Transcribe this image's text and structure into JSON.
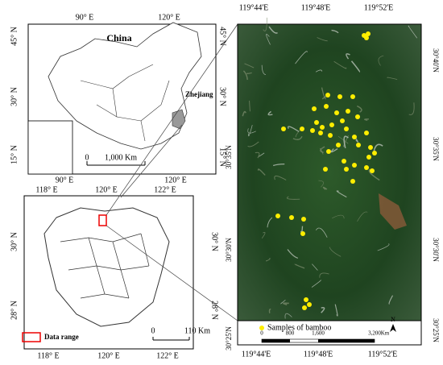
{
  "china_map": {
    "title": "China",
    "province": "Zhejiang",
    "top_labels": [
      "90° E",
      "120° E"
    ],
    "bottom_labels": [
      "90° E",
      "120° E"
    ],
    "left_labels": [
      "45° N",
      "30° N",
      "15° N"
    ],
    "right_labels": [
      "45° N",
      "30° N",
      "15° N"
    ],
    "scale": [
      "0",
      "1,000 Km"
    ]
  },
  "zhejiang_map": {
    "top_labels": [
      "118° E",
      "120° E",
      "122° E"
    ],
    "bottom_labels": [
      "118° E",
      "120° E",
      "122° E"
    ],
    "left_labels": [
      "30° N",
      "28° N"
    ],
    "right_labels": [
      "30° N",
      "28° N"
    ],
    "legend": "Data range",
    "scale": [
      "0",
      "110 Km"
    ]
  },
  "study_area": {
    "top_labels": [
      "119°44'E",
      "119°48'E",
      "119°52'E"
    ],
    "bottom_labels": [
      "119°44'E",
      "119°48'E",
      "119°52'E"
    ],
    "left_labels": [
      "30°35'N",
      "30°30'N",
      "30°25'N"
    ],
    "right_labels": [
      "30°40'N",
      "30°35'N",
      "30°30'N",
      "30°25'N"
    ],
    "legend": "Samples of bamboo",
    "scale": [
      "0",
      "800",
      "1,600",
      "3,200",
      "Km"
    ],
    "north": "N"
  }
}
